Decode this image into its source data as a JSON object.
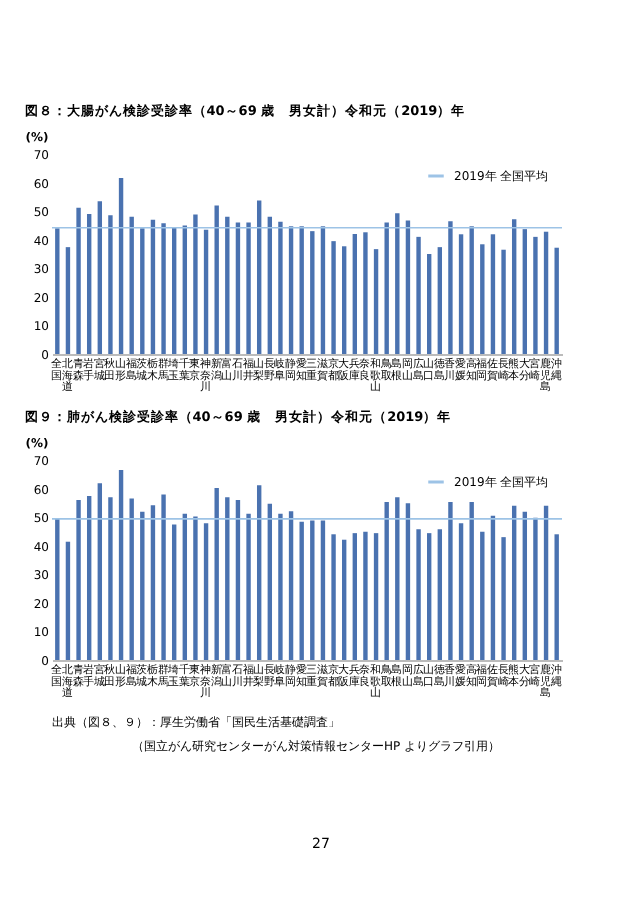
{
  "chart_data": [
    {
      "type": "bar",
      "title": "図８：大腸がん検診受診率（40～69 歳　男女計）令和元（2019）年",
      "ylabel": "(%)",
      "categories": [
        "全国",
        "北海道",
        "青森",
        "岩手",
        "宮城",
        "秋田",
        "山形",
        "福島",
        "茨城",
        "栃木",
        "群馬",
        "埼玉",
        "千葉",
        "東京",
        "神奈川",
        "新潟",
        "富山",
        "石川",
        "福井",
        "山梨",
        "長野",
        "岐阜",
        "静岡",
        "愛知",
        "三重",
        "滋賀",
        "京都",
        "大阪",
        "兵庫",
        "奈良",
        "和歌山",
        "鳥取",
        "島根",
        "岡山",
        "広島",
        "山口",
        "徳島",
        "香川",
        "愛媛",
        "高知",
        "福岡",
        "佐賀",
        "長崎",
        "熊本",
        "大分",
        "宮崎",
        "鹿児島",
        "沖縄"
      ],
      "series": [
        {
          "color": "#4a72b0",
          "values": [
            44,
            37.4,
            51.2,
            49,
            53.5,
            48.6,
            61.6,
            48,
            44,
            47,
            45.8,
            44.2,
            45,
            48.8,
            43.5,
            52,
            48,
            46,
            46,
            53.7,
            48,
            46.3,
            44.7,
            44.7,
            43,
            44.7,
            39.5,
            37.7,
            42,
            42.6,
            36.7,
            46,
            49.3,
            46.7,
            41,
            35,
            37.4,
            46.5,
            41.9,
            44.7,
            38.4,
            41.9,
            36.5,
            47.2,
            43.7,
            41,
            42.8,
            37.2
          ]
        }
      ],
      "ylim": [
        0,
        70
      ],
      "yticks": [
        0,
        10,
        20,
        30,
        40,
        50,
        60,
        70
      ],
      "grid": false,
      "legend": "top right",
      "ref_lines": [
        {
          "axis": "y",
          "value": 44.2,
          "label": "2019年 全国平均",
          "color": "#9dc3e6"
        }
      ]
    },
    {
      "type": "bar",
      "title": "図９：肺がん検診受診率（40～69 歳　男女計）令和元（2019）年",
      "ylabel": "(%)",
      "categories": [
        "全国",
        "北海道",
        "青森",
        "岩手",
        "宮城",
        "秋田",
        "山形",
        "福島",
        "茨城",
        "栃木",
        "群馬",
        "埼玉",
        "千葉",
        "東京",
        "神奈川",
        "新潟",
        "富山",
        "石川",
        "福井",
        "山梨",
        "長野",
        "岐阜",
        "静岡",
        "愛知",
        "三重",
        "滋賀",
        "京都",
        "大阪",
        "兵庫",
        "奈良",
        "和歌山",
        "鳥取",
        "島根",
        "岡山",
        "広島",
        "山口",
        "徳島",
        "香川",
        "愛媛",
        "高知",
        "福岡",
        "佐賀",
        "長崎",
        "熊本",
        "大分",
        "宮崎",
        "鹿児島",
        "沖縄"
      ],
      "series": [
        {
          "color": "#4a72b0",
          "values": [
            49.5,
            41.4,
            56,
            57.4,
            61.9,
            57,
            66.5,
            56.5,
            51.9,
            54.2,
            57.9,
            47.4,
            51.2,
            50.2,
            47.9,
            60.2,
            57,
            56,
            51.2,
            61.2,
            54.7,
            51.2,
            52.1,
            48.4,
            48.8,
            48.8,
            44,
            42.1,
            44.4,
            44.9,
            44.4,
            55.3,
            57,
            54.9,
            45.8,
            44.4,
            45.8,
            55.3,
            47.9,
            55.3,
            44.9,
            50.5,
            43,
            54,
            51.9,
            49.8,
            54,
            44
          ]
        }
      ],
      "ylim": [
        0,
        70
      ],
      "yticks": [
        0,
        10,
        20,
        30,
        40,
        50,
        60,
        70
      ],
      "grid": false,
      "legend": "top right",
      "ref_lines": [
        {
          "axis": "y",
          "value": 49.4,
          "label": "2019年 全国平均",
          "color": "#9dc3e6"
        }
      ],
      "annotations": [
        "出典（図８、９）：厚生労働省「国民生活基礎調査」",
        "（国立がん研究センターがん対策情報センターHP よりグラフ引用）",
        "27"
      ]
    }
  ]
}
